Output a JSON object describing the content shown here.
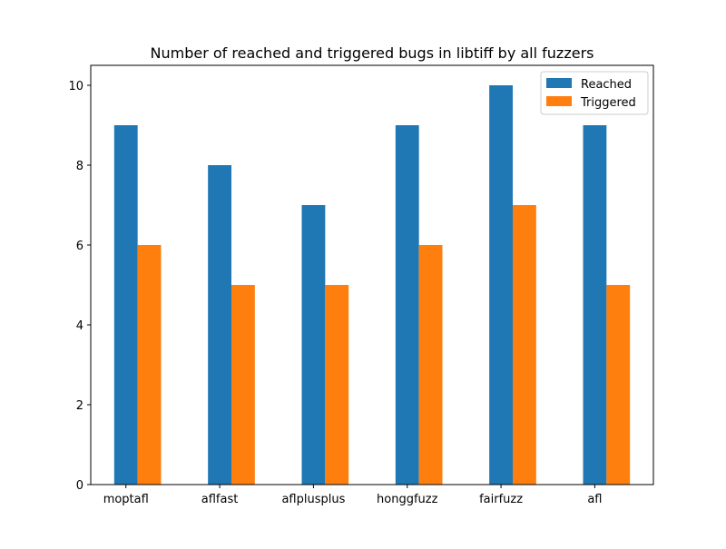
{
  "chart_data": {
    "type": "bar",
    "title": "Number of reached and triggered bugs in libtiff by all fuzzers",
    "xlabel": "",
    "ylabel": "",
    "categories": [
      "moptafl",
      "aflfast",
      "aflplusplus",
      "honggfuzz",
      "fairfuzz",
      "afl"
    ],
    "series": [
      {
        "name": "Reached",
        "color": "#1f77b4",
        "values": [
          9,
          8,
          7,
          9,
          10,
          9
        ]
      },
      {
        "name": "Triggered",
        "color": "#ff7f0e",
        "values": [
          6,
          5,
          5,
          6,
          7,
          5
        ]
      }
    ],
    "ylim": [
      0,
      10.5
    ],
    "yticks": [
      0,
      2,
      4,
      6,
      8,
      10
    ],
    "grid": false,
    "legend_position": "top-right"
  }
}
